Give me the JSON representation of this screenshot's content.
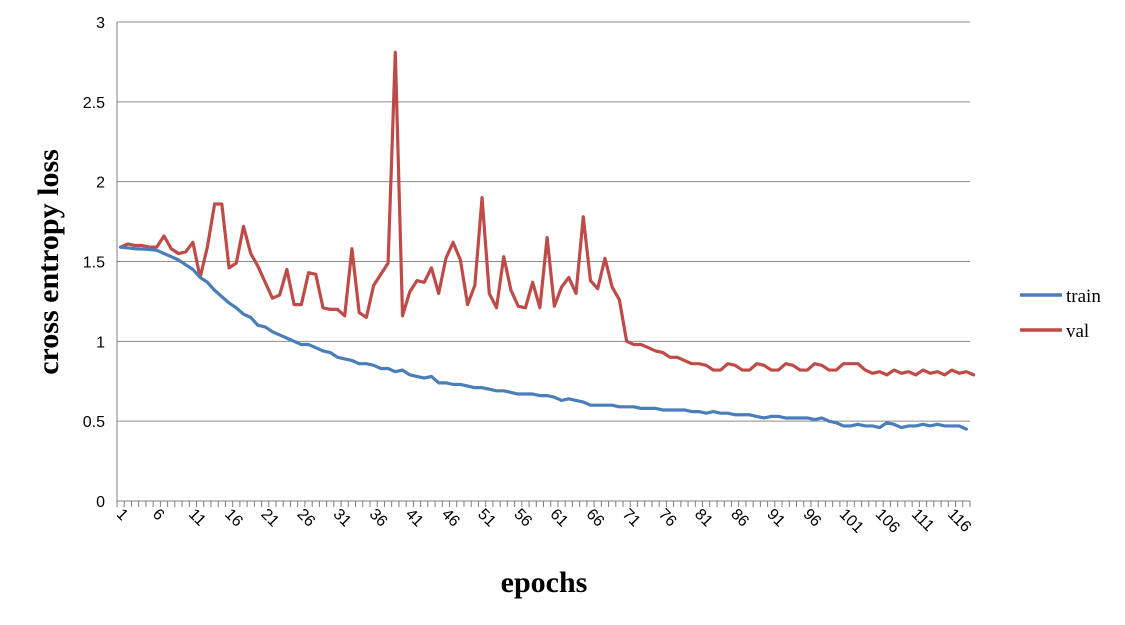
{
  "chart_data": {
    "type": "line",
    "xlabel": "epochs",
    "ylabel": "cross entropy loss",
    "ylim": [
      0,
      3
    ],
    "yticks": [
      "0",
      "0.5",
      "1",
      "1.5",
      "2",
      "2.5",
      "3"
    ],
    "xticks": [
      "1",
      "6",
      "11",
      "16",
      "21",
      "26",
      "31",
      "36",
      "41",
      "46",
      "51",
      "56",
      "61",
      "66",
      "71",
      "76",
      "81",
      "86",
      "91",
      "96",
      "101",
      "106",
      "111",
      "116"
    ],
    "grid": "horizontal",
    "legend_position": "right",
    "series": [
      {
        "name": "train",
        "color": "#4a7ebb",
        "values": [
          1.59,
          1.585,
          1.58,
          1.578,
          1.575,
          1.57,
          1.55,
          1.53,
          1.51,
          1.48,
          1.45,
          1.4,
          1.37,
          1.32,
          1.28,
          1.24,
          1.21,
          1.17,
          1.15,
          1.1,
          1.09,
          1.06,
          1.04,
          1.02,
          1.0,
          0.98,
          0.98,
          0.96,
          0.94,
          0.93,
          0.9,
          0.89,
          0.88,
          0.86,
          0.86,
          0.85,
          0.83,
          0.83,
          0.81,
          0.82,
          0.79,
          0.78,
          0.77,
          0.78,
          0.74,
          0.74,
          0.73,
          0.73,
          0.72,
          0.71,
          0.71,
          0.7,
          0.69,
          0.69,
          0.68,
          0.67,
          0.67,
          0.67,
          0.66,
          0.66,
          0.65,
          0.63,
          0.64,
          0.63,
          0.62,
          0.6,
          0.6,
          0.6,
          0.6,
          0.59,
          0.59,
          0.59,
          0.58,
          0.58,
          0.58,
          0.57,
          0.57,
          0.57,
          0.57,
          0.56,
          0.56,
          0.55,
          0.56,
          0.55,
          0.55,
          0.54,
          0.54,
          0.54,
          0.53,
          0.52,
          0.53,
          0.53,
          0.52,
          0.52,
          0.52,
          0.52,
          0.51,
          0.52,
          0.5,
          0.49,
          0.47,
          0.47,
          0.48,
          0.47,
          0.47,
          0.46,
          0.49,
          0.48,
          0.46,
          0.47,
          0.47,
          0.48,
          0.47,
          0.48,
          0.47,
          0.47,
          0.47,
          0.45
        ]
      },
      {
        "name": "val",
        "color": "#be4b48",
        "values": [
          1.59,
          1.61,
          1.6,
          1.6,
          1.59,
          1.59,
          1.66,
          1.58,
          1.55,
          1.56,
          1.62,
          1.4,
          1.59,
          1.86,
          1.86,
          1.46,
          1.49,
          1.72,
          1.55,
          1.47,
          1.37,
          1.27,
          1.29,
          1.45,
          1.23,
          1.23,
          1.43,
          1.42,
          1.21,
          1.2,
          1.2,
          1.16,
          1.58,
          1.18,
          1.15,
          1.35,
          1.42,
          1.49,
          2.81,
          1.16,
          1.31,
          1.38,
          1.37,
          1.46,
          1.3,
          1.52,
          1.62,
          1.51,
          1.23,
          1.35,
          1.9,
          1.3,
          1.21,
          1.53,
          1.32,
          1.22,
          1.21,
          1.37,
          1.21,
          1.65,
          1.22,
          1.34,
          1.4,
          1.3,
          1.78,
          1.38,
          1.33,
          1.52,
          1.34,
          1.26,
          1.0,
          0.98,
          0.98,
          0.96,
          0.94,
          0.93,
          0.9,
          0.9,
          0.88,
          0.86,
          0.86,
          0.85,
          0.82,
          0.82,
          0.86,
          0.85,
          0.82,
          0.82,
          0.86,
          0.85,
          0.82,
          0.82,
          0.86,
          0.85,
          0.82,
          0.82,
          0.86,
          0.85,
          0.82,
          0.82,
          0.86,
          0.86,
          0.86,
          0.82,
          0.8,
          0.81,
          0.79,
          0.82,
          0.8,
          0.81,
          0.79,
          0.82,
          0.8,
          0.81,
          0.79,
          0.82,
          0.8,
          0.81,
          0.79
        ]
      }
    ]
  }
}
